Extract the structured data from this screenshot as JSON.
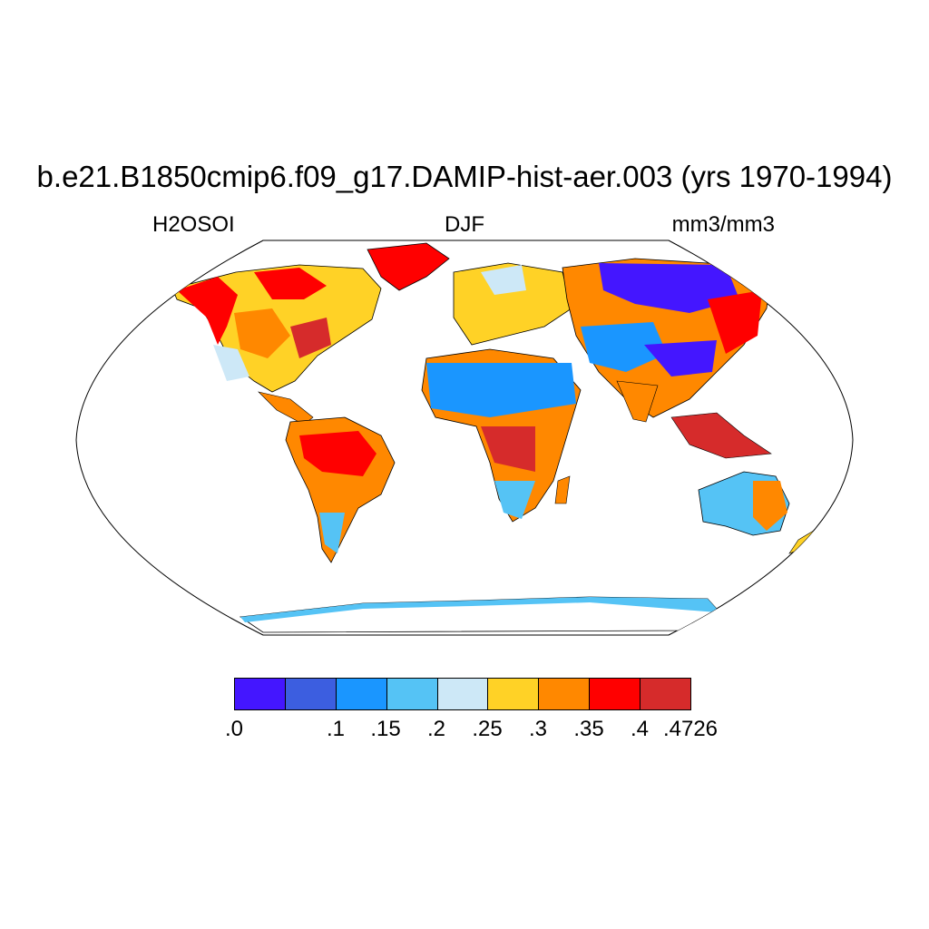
{
  "title": "b.e21.B1850cmip6.f09_g17.DAMIP-hist-aer.003 (yrs 1970-1994)",
  "variable": "H2OSOI",
  "season": "DJF",
  "units": "mm3/mm3",
  "projection": "Robinson",
  "colorbar": {
    "colors": [
      "#4416ff",
      "#3c5ee0",
      "#1a96ff",
      "#55c3f5",
      "#cde8f7",
      "#ffd226",
      "#ff8800",
      "#ff0000",
      "#d62b2b"
    ],
    "labels": [
      ".0",
      ".1",
      ".15",
      ".2",
      ".25",
      ".3",
      ".35",
      ".4",
      ".4726"
    ]
  }
}
